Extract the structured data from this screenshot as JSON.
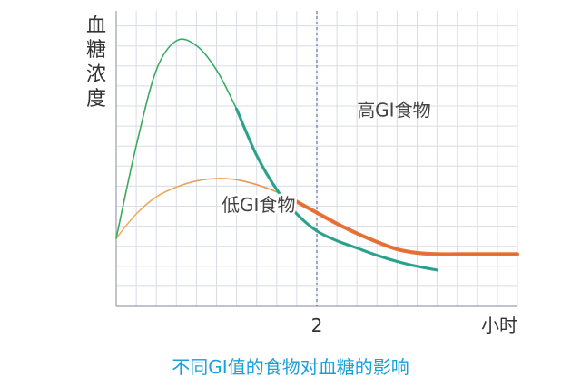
{
  "chart_data": {
    "type": "line",
    "title": "不同GI值的食物对血糖的影响",
    "ylabel": "血糖浓度",
    "xlabel": "小时",
    "x_ticks": [
      {
        "value": 2,
        "label": "2"
      }
    ],
    "xlim": [
      0,
      4.5
    ],
    "ylim": [
      0,
      10
    ],
    "grid": true,
    "series": [
      {
        "name": "高GI食物",
        "color": "#3aaa5a",
        "end_color": "#1f8fb0",
        "x": [
          0,
          0.2,
          0.4,
          0.6,
          0.8,
          1.0,
          1.2,
          1.4,
          1.6,
          1.8,
          2.0,
          2.2,
          2.4,
          2.6,
          2.8,
          3.0,
          3.2
        ],
        "y": [
          1.9,
          5.7,
          8.8,
          10.0,
          9.8,
          8.8,
          7.2,
          5.3,
          3.9,
          2.9,
          2.2,
          1.8,
          1.5,
          1.2,
          0.95,
          0.75,
          0.6
        ]
      },
      {
        "name": "低GI食物",
        "color": "#e8a04a",
        "end_color": "#e2692c",
        "x": [
          0,
          0.2,
          0.4,
          0.6,
          0.8,
          1.0,
          1.2,
          1.4,
          1.6,
          1.8,
          2.0,
          2.2,
          2.4,
          2.6,
          2.8,
          3.0,
          3.2,
          3.4,
          3.6,
          3.8,
          4.0
        ],
        "y": [
          1.9,
          2.9,
          3.6,
          4.0,
          4.25,
          4.35,
          4.3,
          4.1,
          3.8,
          3.4,
          2.95,
          2.5,
          2.1,
          1.75,
          1.45,
          1.3,
          1.25,
          1.25,
          1.25,
          1.25,
          1.25
        ]
      }
    ],
    "annotations": [
      {
        "text": "高GI食物",
        "x": 2.4,
        "y": 7.2
      },
      {
        "text": "低GI食物",
        "x": 1.05,
        "y": 3.3
      }
    ],
    "reference_line": {
      "x": 2,
      "style": "dashed",
      "color": "#5a6fb0"
    }
  }
}
